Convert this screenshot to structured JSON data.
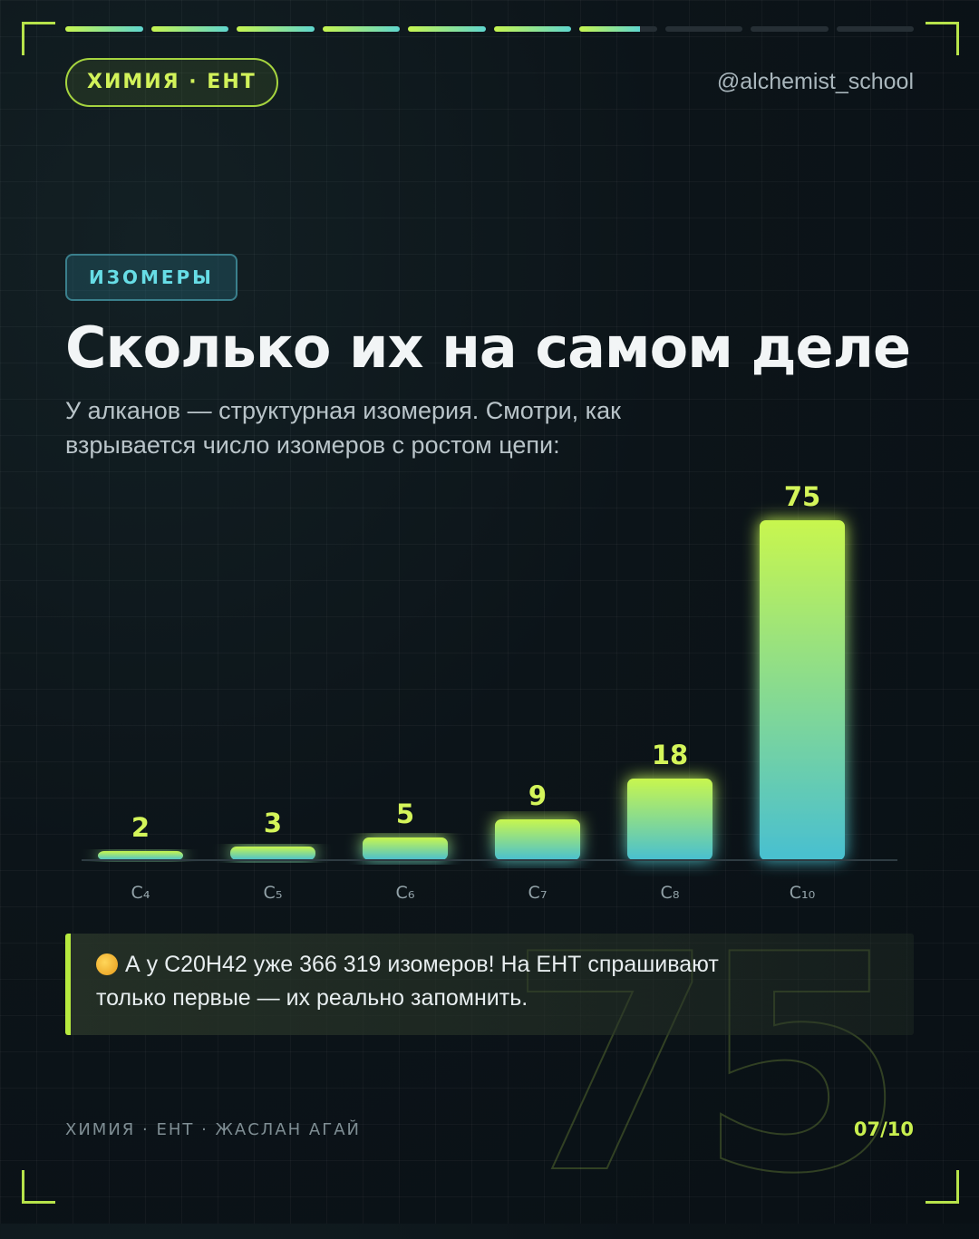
{
  "header": {
    "subject_pill": "ХИМИЯ · ЕНТ",
    "handle": "@alchemist_school",
    "progress": {
      "current": 7,
      "total": 10
    }
  },
  "tag": "ИЗОМЕРЫ",
  "title": "Сколько их на самом деле",
  "subtitle": "У алканов — структурная изомерия. Смотри, как взрывается число изомеров с ростом цепи:",
  "chart_data": {
    "type": "bar",
    "categories": [
      "C₄",
      "C₅",
      "C₆",
      "C₇",
      "C₈",
      "C₁₀"
    ],
    "values": [
      2,
      3,
      5,
      9,
      18,
      75
    ],
    "data_labels": [
      "2",
      "3",
      "5",
      "9",
      "18",
      "75"
    ],
    "title": "",
    "xlabel": "",
    "ylabel": "",
    "grid": false
  },
  "watermark": "75",
  "note": {
    "emoji": "exploding-head-icon",
    "text": "А у C20H42 уже 366 319 изомеров! На ЕНТ спрашивают только первые — их реально запомнить."
  },
  "footer": {
    "left": "ХИМИЯ · ЕНТ · ЖАСЛАН АГАЙ",
    "right": "07/10"
  },
  "colors": {
    "accent": "#c6f54f",
    "teal": "#5fd6cf",
    "background": "#0c1419"
  }
}
